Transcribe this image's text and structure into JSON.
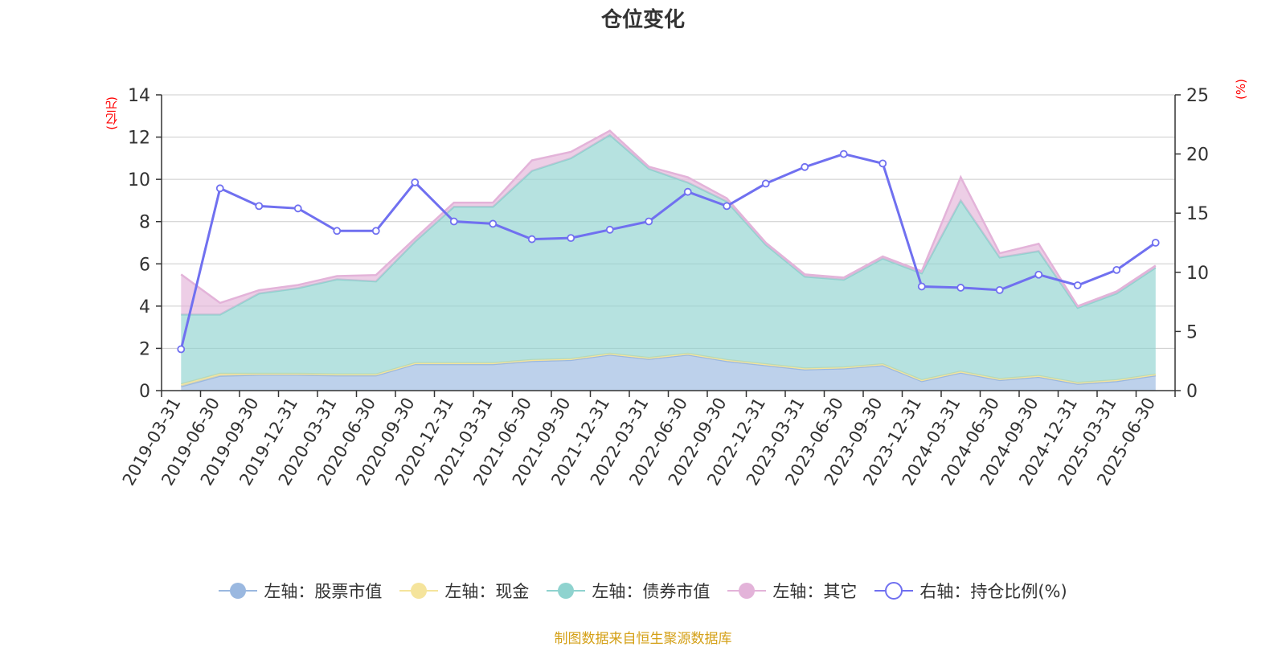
{
  "chart_data": {
    "type": "area",
    "title": "仓位变化",
    "left_unit": "(亿元)",
    "right_unit": "(%)",
    "ylim_left": [
      0,
      14
    ],
    "yticks_left": [
      0,
      2,
      4,
      6,
      8,
      10,
      12,
      14
    ],
    "ylim_right": [
      0,
      25
    ],
    "yticks_right": [
      0,
      5,
      10,
      15,
      20,
      25
    ],
    "grid": true,
    "legend_position": "bottom",
    "categories": [
      "2019-03-31",
      "2019-06-30",
      "2019-09-30",
      "2019-12-31",
      "2020-03-31",
      "2020-06-30",
      "2020-09-30",
      "2020-12-31",
      "2021-03-31",
      "2021-06-30",
      "2021-09-30",
      "2021-12-31",
      "2022-03-31",
      "2022-06-30",
      "2022-09-30",
      "2022-12-31",
      "2023-03-31",
      "2023-06-30",
      "2023-09-30",
      "2023-12-31",
      "2024-03-31",
      "2024-06-30",
      "2024-09-30",
      "2024-12-31",
      "2025-03-31",
      "2025-06-30"
    ],
    "series": [
      {
        "name": "左轴：股票市值",
        "axis": "left",
        "stack": true,
        "color": "#9ab8e0",
        "values": [
          0.2,
          0.7,
          0.75,
          0.75,
          0.72,
          0.72,
          1.25,
          1.25,
          1.25,
          1.4,
          1.45,
          1.7,
          1.5,
          1.7,
          1.4,
          1.2,
          1.0,
          1.05,
          1.2,
          0.45,
          0.85,
          0.5,
          0.65,
          0.32,
          0.45,
          0.72
        ]
      },
      {
        "name": "左轴：现金",
        "axis": "left",
        "stack": true,
        "color": "#f5e49c",
        "values": [
          0.1,
          0.1,
          0.05,
          0.05,
          0.05,
          0.05,
          0.05,
          0.05,
          0.05,
          0.05,
          0.05,
          0.05,
          0.05,
          0.05,
          0.05,
          0.05,
          0.05,
          0.05,
          0.05,
          0.05,
          0.05,
          0.05,
          0.05,
          0.05,
          0.05,
          0.05
        ]
      },
      {
        "name": "左轴：债券市值",
        "axis": "left",
        "stack": true,
        "color": "#8fd3cf",
        "values": [
          3.3,
          2.8,
          3.8,
          4.05,
          4.5,
          4.4,
          5.75,
          7.4,
          7.4,
          8.95,
          9.5,
          10.35,
          8.95,
          8.1,
          7.5,
          5.65,
          4.35,
          4.15,
          5.0,
          5.05,
          8.1,
          5.75,
          5.9,
          3.55,
          4.1,
          5.05
        ]
      },
      {
        "name": "左轴：其它",
        "axis": "left",
        "stack": true,
        "color": "#e3b3d9",
        "values": [
          1.9,
          0.55,
          0.15,
          0.15,
          0.15,
          0.3,
          0.15,
          0.2,
          0.2,
          0.5,
          0.3,
          0.2,
          0.1,
          0.25,
          0.15,
          0.1,
          0.1,
          0.1,
          0.1,
          0.1,
          1.1,
          0.2,
          0.35,
          0.08,
          0.1,
          0.1
        ]
      },
      {
        "name": "右轴：持仓比例(%)",
        "axis": "right",
        "type": "line",
        "color": "#7070f0",
        "values": [
          3.5,
          17.1,
          15.6,
          15.4,
          13.5,
          13.5,
          17.6,
          14.3,
          14.1,
          12.8,
          12.9,
          13.6,
          14.3,
          16.8,
          15.6,
          17.5,
          18.9,
          20.0,
          19.2,
          8.8,
          8.7,
          8.5,
          9.8,
          8.9,
          10.2,
          12.5
        ]
      }
    ]
  },
  "footer": {
    "source": "制图数据来自恒生聚源数据库"
  }
}
